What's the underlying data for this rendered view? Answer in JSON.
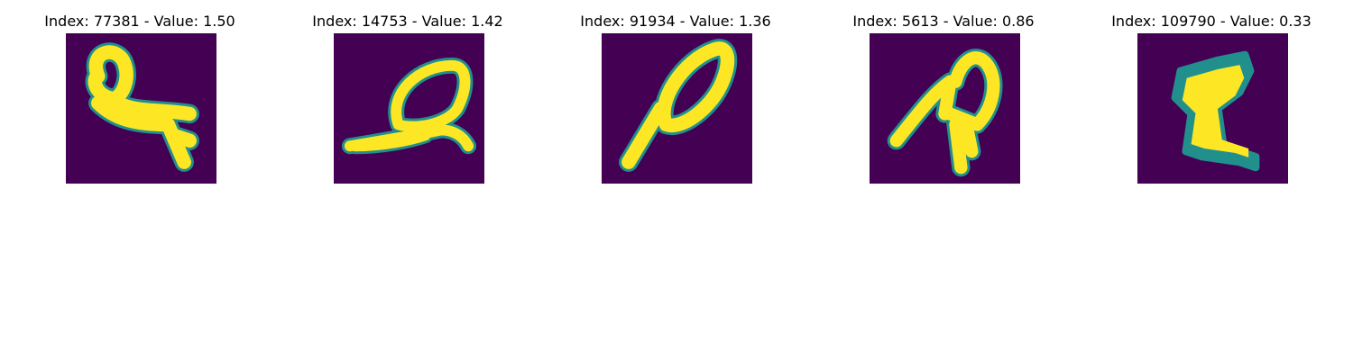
{
  "panels": [
    {
      "title": "Index: 77381 - Value: 1.50",
      "index": 77381,
      "value": 1.5,
      "glyph": "ampersand-loop-digit-icon"
    },
    {
      "title": "Index: 14753 - Value: 1.42",
      "index": 14753,
      "value": 1.42,
      "glyph": "looped-stroke-digit-icon"
    },
    {
      "title": "Index: 91934 - Value: 1.36",
      "index": 91934,
      "value": 1.36,
      "glyph": "slanted-loop-digit-icon"
    },
    {
      "title": "Index: 5613 - Value: 0.86",
      "index": 5613,
      "value": 0.86,
      "glyph": "a-shaped-digit-icon"
    },
    {
      "title": "Index: 109790 - Value: 0.33",
      "index": 109790,
      "value": 0.33,
      "glyph": "z-shaped-digit-icon"
    }
  ],
  "colors": {
    "background": "#440154",
    "foreground": "#fde725",
    "edge": "#21908d"
  }
}
